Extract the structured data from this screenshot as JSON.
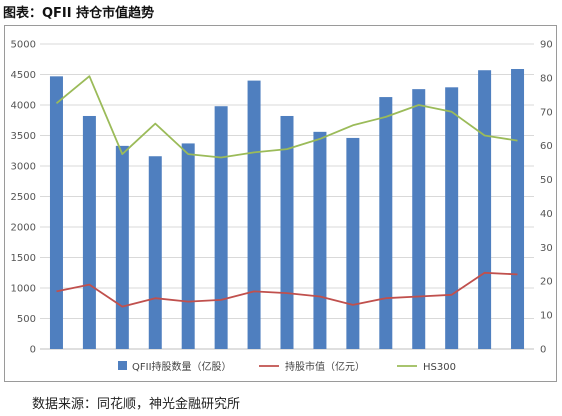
{
  "header": {
    "title": "图表：QFII 持仓市值趋势"
  },
  "footer": {
    "source": "数据来源：同花顺，神光金融研究所"
  },
  "chart_data": {
    "type": "bar+line",
    "title": "",
    "left_axis": {
      "min": 0,
      "max": 5000,
      "step": 500,
      "ticks": [
        "0",
        "500",
        "1000",
        "1500",
        "2000",
        "2500",
        "3000",
        "3500",
        "4000",
        "4500",
        "5000"
      ]
    },
    "right_axis": {
      "min": 0,
      "max": 90,
      "step": 10,
      "ticks": [
        "0",
        "10",
        "20",
        "30",
        "40",
        "50",
        "60",
        "70",
        "80",
        "90"
      ]
    },
    "categories_count": 15,
    "grid": true,
    "legend_position": "bottom",
    "series": [
      {
        "name": "QFII持股数量（亿股）",
        "type": "bar",
        "axis": "left",
        "color": "#4f7fbf",
        "values": [
          4470,
          3820,
          3330,
          3160,
          3370,
          3980,
          4400,
          3820,
          3560,
          3460,
          4130,
          4260,
          4290,
          4570,
          4590
        ]
      },
      {
        "name": "持股市值（亿元）",
        "type": "line",
        "axis": "right",
        "color": "#c0504d",
        "values": [
          17,
          19,
          12.5,
          15,
          14,
          14.5,
          17,
          16.5,
          15.5,
          13,
          15,
          15.5,
          16,
          22.5,
          22
        ]
      },
      {
        "name": "HS300",
        "type": "line",
        "axis": "right",
        "color": "#9bbb59",
        "values": [
          72.5,
          80.5,
          57.5,
          66.5,
          57.5,
          56.5,
          58,
          59,
          62,
          66,
          68.5,
          72,
          70,
          63,
          61.5
        ]
      }
    ]
  }
}
